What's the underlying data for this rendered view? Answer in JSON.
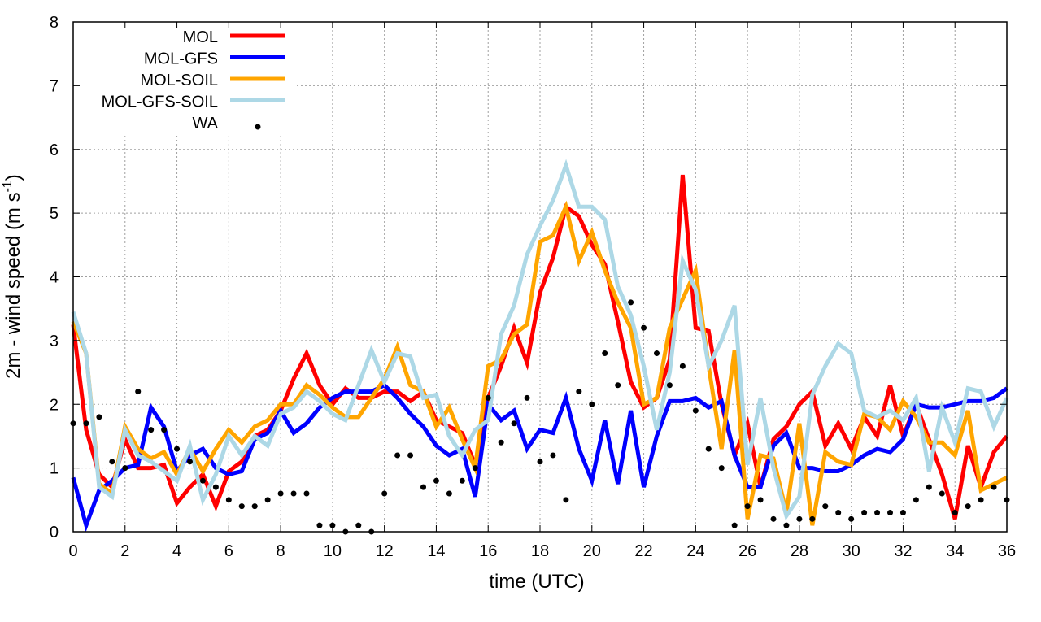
{
  "chart_data": {
    "type": "line",
    "title": "",
    "xlabel": "time (UTC)",
    "ylabel": "2m - wind speed  (m s",
    "ylabel_sup": "-1",
    "ylabel_end": ")",
    "xlim": [
      0,
      36
    ],
    "ylim": [
      0,
      8
    ],
    "xticks": [
      0,
      2,
      4,
      6,
      8,
      10,
      12,
      14,
      16,
      18,
      20,
      22,
      24,
      26,
      28,
      30,
      32,
      34,
      36
    ],
    "yticks": [
      0,
      1,
      2,
      3,
      4,
      5,
      6,
      7,
      8
    ],
    "grid": true,
    "legend_position": "top-left",
    "x_step": 0.5,
    "series": [
      {
        "name": "MOL",
        "color": "#ff0000",
        "style": "line",
        "values": [
          3.25,
          1.6,
          0.9,
          0.7,
          1.45,
          1.0,
          1.0,
          1.05,
          0.45,
          0.7,
          0.9,
          0.4,
          0.95,
          1.1,
          1.5,
          1.6,
          1.9,
          2.4,
          2.8,
          2.3,
          2.0,
          2.25,
          2.1,
          2.1,
          2.2,
          2.2,
          2.05,
          2.2,
          1.75,
          1.65,
          1.55,
          1.05,
          2.1,
          2.6,
          3.2,
          2.65,
          3.75,
          4.3,
          5.1,
          4.95,
          4.5,
          4.2,
          3.3,
          2.35,
          1.95,
          2.1,
          2.7,
          5.6,
          3.2,
          3.15,
          2.0,
          1.2,
          1.7,
          0.7,
          1.45,
          1.65,
          2.0,
          2.2,
          1.35,
          1.7,
          1.3,
          1.8,
          1.5,
          2.3,
          1.5,
          2.0,
          1.45,
          0.9,
          0.2,
          1.35,
          0.7,
          1.25,
          1.5
        ]
      },
      {
        "name": "MOL-GFS",
        "color": "#0000ff",
        "style": "line",
        "values": [
          0.85,
          0.1,
          0.65,
          0.8,
          1.0,
          1.05,
          1.95,
          1.65,
          0.95,
          1.2,
          1.3,
          1.0,
          0.9,
          0.95,
          1.45,
          1.55,
          1.9,
          1.55,
          1.7,
          1.95,
          2.1,
          2.2,
          2.2,
          2.2,
          2.3,
          2.1,
          1.85,
          1.65,
          1.35,
          1.2,
          1.3,
          0.55,
          2.0,
          1.75,
          1.9,
          1.3,
          1.6,
          1.55,
          2.1,
          1.3,
          0.8,
          1.75,
          0.75,
          1.9,
          0.7,
          1.5,
          2.05,
          2.05,
          2.1,
          1.95,
          2.05,
          1.2,
          0.7,
          0.7,
          1.35,
          1.55,
          1.0,
          1.0,
          0.95,
          0.95,
          1.05,
          1.2,
          1.3,
          1.25,
          1.45,
          2.0,
          1.95,
          1.95,
          2.0,
          2.05,
          2.05,
          2.1,
          2.25
        ]
      },
      {
        "name": "MOL-SOIL",
        "color": "#ffa500",
        "style": "line",
        "values": [
          3.3,
          2.8,
          0.75,
          0.6,
          1.65,
          1.3,
          1.15,
          1.25,
          0.9,
          1.3,
          0.95,
          1.3,
          1.6,
          1.4,
          1.65,
          1.75,
          2.0,
          2.0,
          2.3,
          2.15,
          1.95,
          1.8,
          1.8,
          2.1,
          2.4,
          2.9,
          2.3,
          2.2,
          1.65,
          1.95,
          1.45,
          1.0,
          2.6,
          2.7,
          3.1,
          3.25,
          4.55,
          4.65,
          5.1,
          4.25,
          4.7,
          4.1,
          3.6,
          3.2,
          2.0,
          2.1,
          3.2,
          3.65,
          4.1,
          2.6,
          1.3,
          2.85,
          0.2,
          1.2,
          1.15,
          0.3,
          1.7,
          0.1,
          1.25,
          1.1,
          1.05,
          1.85,
          1.8,
          1.6,
          2.05,
          1.8,
          1.4,
          1.4,
          1.2,
          1.9,
          0.65,
          0.75,
          0.85
        ]
      },
      {
        "name": "MOL-GFS-SOIL",
        "color": "#add8e6",
        "style": "line",
        "values": [
          3.45,
          2.8,
          0.7,
          0.55,
          1.6,
          1.2,
          1.1,
          0.95,
          0.8,
          1.35,
          0.5,
          0.9,
          1.5,
          1.2,
          1.5,
          1.35,
          1.85,
          1.95,
          2.2,
          2.05,
          1.85,
          1.75,
          2.3,
          2.85,
          2.35,
          2.8,
          2.75,
          2.1,
          2.15,
          1.5,
          1.2,
          1.6,
          1.75,
          3.1,
          3.55,
          4.35,
          4.8,
          5.2,
          5.75,
          5.1,
          5.1,
          4.9,
          3.85,
          3.4,
          2.6,
          1.6,
          2.5,
          4.25,
          3.8,
          2.6,
          3.0,
          3.55,
          1.05,
          2.1,
          1.0,
          0.25,
          0.55,
          2.15,
          2.6,
          2.95,
          2.8,
          1.9,
          1.8,
          1.9,
          1.75,
          2.1,
          0.95,
          1.95,
          1.4,
          2.25,
          2.2,
          1.65,
          2.1
        ]
      },
      {
        "name": "WA",
        "color": "#000000",
        "style": "points",
        "values": [
          1.7,
          1.7,
          1.8,
          1.1,
          1.0,
          2.2,
          1.6,
          1.6,
          1.3,
          1.1,
          0.8,
          0.7,
          0.5,
          0.4,
          0.4,
          0.5,
          0.6,
          0.6,
          0.6,
          0.1,
          0.1,
          0.0,
          0.1,
          0.0,
          0.6,
          1.2,
          1.2,
          0.7,
          0.8,
          0.6,
          0.8,
          1.0,
          2.1,
          1.4,
          1.7,
          2.1,
          1.1,
          1.2,
          0.5,
          2.2,
          2.0,
          2.8,
          2.3,
          3.6,
          3.2,
          2.8,
          2.3,
          2.6,
          1.9,
          1.3,
          1.0,
          0.1,
          0.4,
          0.5,
          0.2,
          0.1,
          0.2,
          0.2,
          0.4,
          0.3,
          0.2,
          0.3,
          0.3,
          0.3,
          0.3,
          0.5,
          0.7,
          0.6,
          0.3,
          0.4,
          0.5,
          0.7,
          0.5
        ]
      }
    ]
  }
}
